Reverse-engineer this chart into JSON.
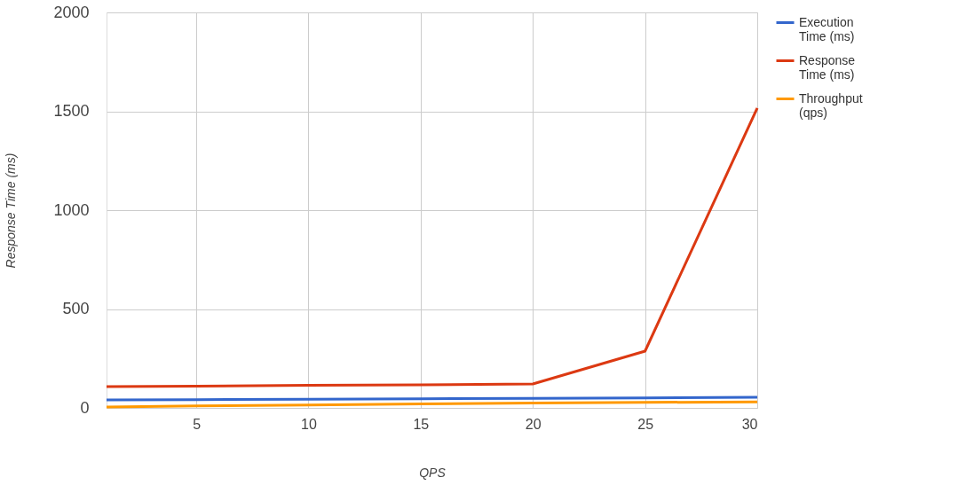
{
  "chart_data": {
    "type": "line",
    "xlabel": "QPS",
    "ylabel": "Response Time (ms)",
    "x": [
      1,
      5,
      10,
      15,
      20,
      25,
      30
    ],
    "series": [
      {
        "name": "Execution Time (ms)",
        "color": "#3366cc",
        "values": [
          40,
          42,
          44,
          46,
          48,
          50,
          54
        ]
      },
      {
        "name": "Response Time (ms)",
        "color": "#dc3912",
        "values": [
          108,
          110,
          114,
          117,
          121,
          287,
          1516
        ]
      },
      {
        "name": "Throughput (qps)",
        "color": "#ff9900",
        "values": [
          5,
          10,
          15,
          20,
          25,
          28,
          30
        ]
      }
    ],
    "xlim": [
      1,
      30
    ],
    "xticks": [
      5,
      10,
      15,
      20,
      25,
      30
    ],
    "ylim": [
      0,
      2000
    ],
    "yticks": [
      0,
      500,
      1000,
      1500,
      2000
    ],
    "grid": true,
    "legend": "right",
    "marker": "none",
    "line_style": "solid"
  }
}
